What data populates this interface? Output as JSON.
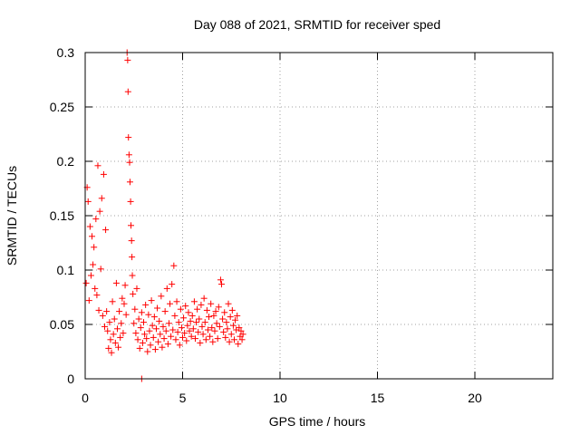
{
  "chart_data": {
    "type": "scatter",
    "title": "Day 088 of 2021, SRMTID for receiver sped",
    "xlabel": "GPS time / hours",
    "ylabel": "SRMTID / TECUs",
    "xlim": [
      0,
      24
    ],
    "ylim": [
      0,
      0.3
    ],
    "x_ticks": [
      0,
      5,
      10,
      15,
      20
    ],
    "x_tick_labels": [
      "0",
      "5",
      "10",
      "15",
      "20"
    ],
    "y_ticks": [
      0,
      0.05,
      0.1,
      0.15,
      0.2,
      0.25,
      0.3
    ],
    "y_tick_labels": [
      "0",
      "0.05",
      "0.1",
      "0.15",
      "0.2",
      "0.25",
      "0.3"
    ],
    "grid": true,
    "marker": "+",
    "series_color": "#ff0000",
    "series": [
      {
        "name": "SRMTID",
        "points": [
          [
            0.05,
            0.088
          ],
          [
            0.1,
            0.176
          ],
          [
            0.15,
            0.163
          ],
          [
            0.2,
            0.072
          ],
          [
            0.25,
            0.14
          ],
          [
            0.3,
            0.095
          ],
          [
            0.35,
            0.131
          ],
          [
            0.4,
            0.105
          ],
          [
            0.45,
            0.121
          ],
          [
            0.5,
            0.083
          ],
          [
            0.55,
            0.147
          ],
          [
            0.6,
            0.077
          ],
          [
            0.65,
            0.196
          ],
          [
            0.7,
            0.063
          ],
          [
            0.75,
            0.154
          ],
          [
            0.8,
            0.101
          ],
          [
            0.85,
            0.166
          ],
          [
            0.9,
            0.058
          ],
          [
            0.95,
            0.188
          ],
          [
            1.0,
            0.048
          ],
          [
            1.05,
            0.137
          ],
          [
            1.1,
            0.062
          ],
          [
            1.15,
            0.044
          ],
          [
            1.2,
            0.028
          ],
          [
            1.25,
            0.052
          ],
          [
            1.3,
            0.036
          ],
          [
            1.35,
            0.024
          ],
          [
            1.4,
            0.071
          ],
          [
            1.45,
            0.041
          ],
          [
            1.5,
            0.055
          ],
          [
            1.55,
            0.033
          ],
          [
            1.6,
            0.088
          ],
          [
            1.65,
            0.046
          ],
          [
            1.7,
            0.029
          ],
          [
            1.75,
            0.062
          ],
          [
            1.8,
            0.038
          ],
          [
            1.85,
            0.051
          ],
          [
            1.9,
            0.074
          ],
          [
            1.95,
            0.042
          ],
          [
            2.0,
            0.069
          ],
          [
            2.05,
            0.086
          ],
          [
            2.1,
            0.059
          ],
          [
            2.15,
            0.3
          ],
          [
            2.18,
            0.293
          ],
          [
            2.2,
            0.264
          ],
          [
            2.22,
            0.222
          ],
          [
            2.25,
            0.206
          ],
          [
            2.28,
            0.199
          ],
          [
            2.3,
            0.181
          ],
          [
            2.33,
            0.163
          ],
          [
            2.35,
            0.141
          ],
          [
            2.38,
            0.127
          ],
          [
            2.4,
            0.112
          ],
          [
            2.42,
            0.095
          ],
          [
            2.45,
            0.078
          ],
          [
            2.5,
            0.051
          ],
          [
            2.55,
            0.064
          ],
          [
            2.6,
            0.042
          ],
          [
            2.65,
            0.083
          ],
          [
            2.7,
            0.036
          ],
          [
            2.75,
            0.055
          ],
          [
            2.8,
            0.028
          ],
          [
            2.85,
            0.047
          ],
          [
            2.9,
            0.061
          ],
          [
            2.95,
            0.033
          ],
          [
            3.0,
            0.052
          ],
          [
            3.05,
            0.041
          ],
          [
            3.1,
            0.068
          ],
          [
            3.15,
            0.037
          ],
          [
            3.2,
            0.025
          ],
          [
            3.25,
            0.059
          ],
          [
            3.3,
            0.044
          ],
          [
            3.35,
            0.031
          ],
          [
            3.4,
            0.072
          ],
          [
            3.45,
            0.049
          ],
          [
            3.5,
            0.038
          ],
          [
            3.55,
            0.057
          ],
          [
            3.6,
            0.027
          ],
          [
            3.65,
            0.046
          ],
          [
            3.7,
            0.065
          ],
          [
            3.75,
            0.034
          ],
          [
            3.8,
            0.053
          ],
          [
            3.85,
            0.041
          ],
          [
            3.9,
            0.076
          ],
          [
            3.95,
            0.029
          ],
          [
            4.0,
            0.048
          ],
          [
            4.05,
            0.037
          ],
          [
            4.1,
            0.062
          ],
          [
            4.15,
            0.044
          ],
          [
            4.2,
            0.083
          ],
          [
            4.25,
            0.032
          ],
          [
            4.3,
            0.051
          ],
          [
            4.35,
            0.069
          ],
          [
            4.4,
            0.039
          ],
          [
            4.45,
            0.087
          ],
          [
            4.5,
            0.045
          ],
          [
            4.55,
            0.104
          ],
          [
            4.6,
            0.058
          ],
          [
            4.65,
            0.036
          ],
          [
            4.7,
            0.071
          ],
          [
            4.75,
            0.043
          ],
          [
            4.8,
            0.052
          ],
          [
            4.85,
            0.031
          ],
          [
            4.9,
            0.064
          ],
          [
            4.95,
            0.047
          ],
          [
            5.0,
            0.038
          ],
          [
            5.05,
            0.056
          ],
          [
            5.1,
            0.042
          ],
          [
            5.15,
            0.067
          ],
          [
            5.2,
            0.035
          ],
          [
            5.25,
            0.049
          ],
          [
            5.3,
            0.061
          ],
          [
            5.35,
            0.044
          ],
          [
            5.4,
            0.053
          ],
          [
            5.45,
            0.039
          ],
          [
            5.5,
            0.058
          ],
          [
            5.55,
            0.046
          ],
          [
            5.6,
            0.071
          ],
          [
            5.65,
            0.037
          ],
          [
            5.7,
            0.052
          ],
          [
            5.75,
            0.064
          ],
          [
            5.8,
            0.043
          ],
          [
            5.85,
            0.055
          ],
          [
            5.9,
            0.033
          ],
          [
            5.95,
            0.068
          ],
          [
            6.0,
            0.048
          ],
          [
            6.05,
            0.041
          ],
          [
            6.1,
            0.074
          ],
          [
            6.15,
            0.052
          ],
          [
            6.2,
            0.036
          ],
          [
            6.25,
            0.063
          ],
          [
            6.3,
            0.045
          ],
          [
            6.35,
            0.057
          ],
          [
            6.4,
            0.039
          ],
          [
            6.45,
            0.069
          ],
          [
            6.5,
            0.047
          ],
          [
            6.55,
            0.034
          ],
          [
            6.6,
            0.058
          ],
          [
            6.65,
            0.044
          ],
          [
            6.7,
            0.062
          ],
          [
            6.75,
            0.051
          ],
          [
            6.8,
            0.037
          ],
          [
            6.85,
            0.066
          ],
          [
            6.9,
            0.048
          ],
          [
            6.95,
            0.091
          ],
          [
            7.0,
            0.087
          ],
          [
            7.05,
            0.055
          ],
          [
            7.1,
            0.043
          ],
          [
            7.15,
            0.061
          ],
          [
            7.2,
            0.038
          ],
          [
            7.25,
            0.052
          ],
          [
            7.3,
            0.046
          ],
          [
            7.35,
            0.069
          ],
          [
            7.4,
            0.034
          ],
          [
            7.45,
            0.057
          ],
          [
            7.5,
            0.041
          ],
          [
            7.55,
            0.063
          ],
          [
            7.6,
            0.049
          ],
          [
            7.65,
            0.036
          ],
          [
            7.7,
            0.054
          ],
          [
            7.75,
            0.045
          ],
          [
            7.8,
            0.058
          ],
          [
            7.85,
            0.032
          ],
          [
            7.9,
            0.047
          ],
          [
            7.95,
            0.039
          ],
          [
            8.0,
            0.044
          ],
          [
            8.05,
            0.036
          ],
          [
            8.1,
            0.041
          ],
          [
            2.9,
            0.0
          ]
        ]
      }
    ]
  }
}
